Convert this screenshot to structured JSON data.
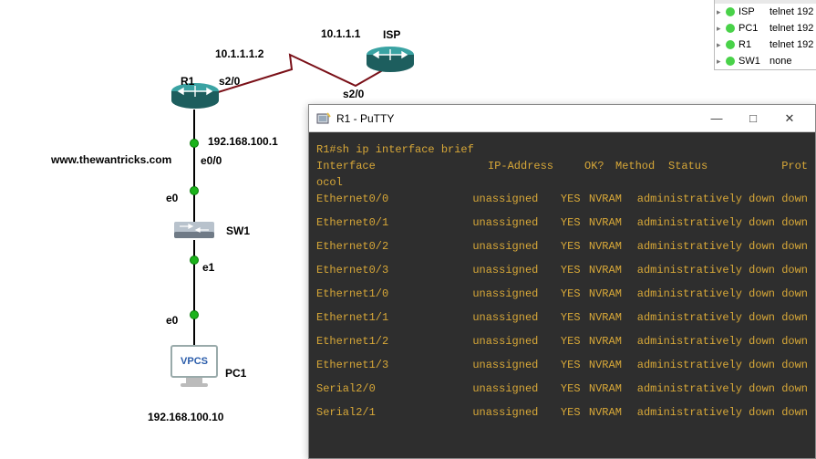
{
  "topology": {
    "url": "www.thewantricks.com",
    "nodes": {
      "isp": {
        "label": "ISP",
        "ip": "10.1.1.1",
        "port": "s2/0"
      },
      "r1": {
        "label": "R1",
        "ip": "10.1.1.1.2",
        "port": "s2/0",
        "lan_ip": "192.168.100.1",
        "lan_port": "e0/0"
      },
      "sw1": {
        "label": "SW1",
        "up_port": "e0",
        "down_port": "e1"
      },
      "pc1": {
        "label": "PC1",
        "port": "e0",
        "ip": "192.168.100.10",
        "badge": "VPCS"
      }
    },
    "colors": {
      "router_top": "#3aa3a3",
      "router_side": "#1d5e5e",
      "switch_top": "#b8c2cc",
      "switch_side": "#6f7a86",
      "wire": "#000000",
      "serial_wire": "#7a1018",
      "dot": "#1bb31b"
    }
  },
  "putty": {
    "title": "R1 - PuTTY",
    "command": "R1#sh ip interface brief",
    "header": {
      "intf": "Interface",
      "ip": "IP-Address",
      "ok": "OK?",
      "method": "Method",
      "status": "Status",
      "proto": "Prot"
    },
    "header2": "ocol",
    "rows": [
      {
        "intf": "Ethernet0/0",
        "ip": "unassigned",
        "ok": "YES",
        "method": "NVRAM",
        "status": "administratively down down"
      },
      {
        "intf": "Ethernet0/1",
        "ip": "unassigned",
        "ok": "YES",
        "method": "NVRAM",
        "status": "administratively down down"
      },
      {
        "intf": "Ethernet0/2",
        "ip": "unassigned",
        "ok": "YES",
        "method": "NVRAM",
        "status": "administratively down down"
      },
      {
        "intf": "Ethernet0/3",
        "ip": "unassigned",
        "ok": "YES",
        "method": "NVRAM",
        "status": "administratively down down"
      },
      {
        "intf": "Ethernet1/0",
        "ip": "unassigned",
        "ok": "YES",
        "method": "NVRAM",
        "status": "administratively down down"
      },
      {
        "intf": "Ethernet1/1",
        "ip": "unassigned",
        "ok": "YES",
        "method": "NVRAM",
        "status": "administratively down down"
      },
      {
        "intf": "Ethernet1/2",
        "ip": "unassigned",
        "ok": "YES",
        "method": "NVRAM",
        "status": "administratively down down"
      },
      {
        "intf": "Ethernet1/3",
        "ip": "unassigned",
        "ok": "YES",
        "method": "NVRAM",
        "status": "administratively down down"
      },
      {
        "intf": "Serial2/0",
        "ip": "unassigned",
        "ok": "YES",
        "method": "NVRAM",
        "status": "administratively down down"
      },
      {
        "intf": "Serial2/1",
        "ip": "unassigned",
        "ok": "YES",
        "method": "NVRAM",
        "status": "administratively down down"
      }
    ]
  },
  "devlist": {
    "items": [
      {
        "name": "ISP",
        "action": "telnet 192"
      },
      {
        "name": "PC1",
        "action": "telnet 192"
      },
      {
        "name": "R1",
        "action": "telnet 192"
      },
      {
        "name": "SW1",
        "action": "none"
      }
    ]
  }
}
